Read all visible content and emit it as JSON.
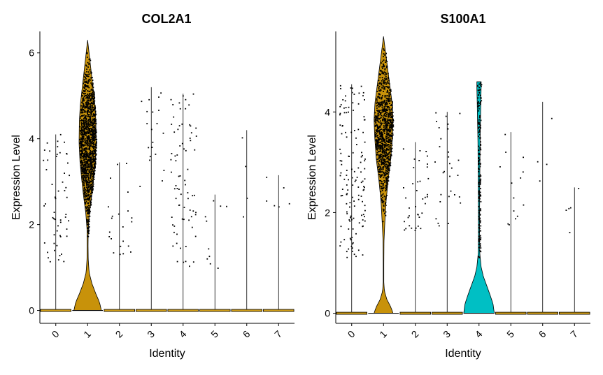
{
  "chart_data": [
    {
      "type": "violin",
      "title": "COL2A1",
      "xlabel": "Identity",
      "ylabel": "Expression Level",
      "categories": [
        "0",
        "1",
        "2",
        "3",
        "4",
        "5",
        "6",
        "7"
      ],
      "ylim": [
        -0.3,
        6.5
      ],
      "yticks": [
        0,
        2,
        4,
        6
      ],
      "fill_colors": [
        "#D4A017",
        "#C8920A",
        "#D4A017",
        "#D4A017",
        "#D4A017",
        "#D4A017",
        "#D4A017",
        "#D4A017"
      ],
      "max_values": [
        4.1,
        6.3,
        3.45,
        5.2,
        5.05,
        2.7,
        4.2,
        3.15
      ],
      "points_shown": true,
      "grid": false
    },
    {
      "type": "violin",
      "title": "S100A1",
      "xlabel": "Identity",
      "ylabel": "Expression Level",
      "categories": [
        "0",
        "1",
        "2",
        "3",
        "4",
        "5",
        "6",
        "7"
      ],
      "ylim": [
        -0.2,
        5.6
      ],
      "yticks": [
        0,
        2,
        4
      ],
      "fill_colors": [
        "#D4A017",
        "#C8920A",
        "#D4A017",
        "#D4A017",
        "#00BFC4",
        "#D4A017",
        "#D4A017",
        "#D4A017"
      ],
      "max_values": [
        4.55,
        5.5,
        3.4,
        4.0,
        4.6,
        3.6,
        4.2,
        2.5
      ],
      "points_shown": true,
      "grid": false
    }
  ]
}
